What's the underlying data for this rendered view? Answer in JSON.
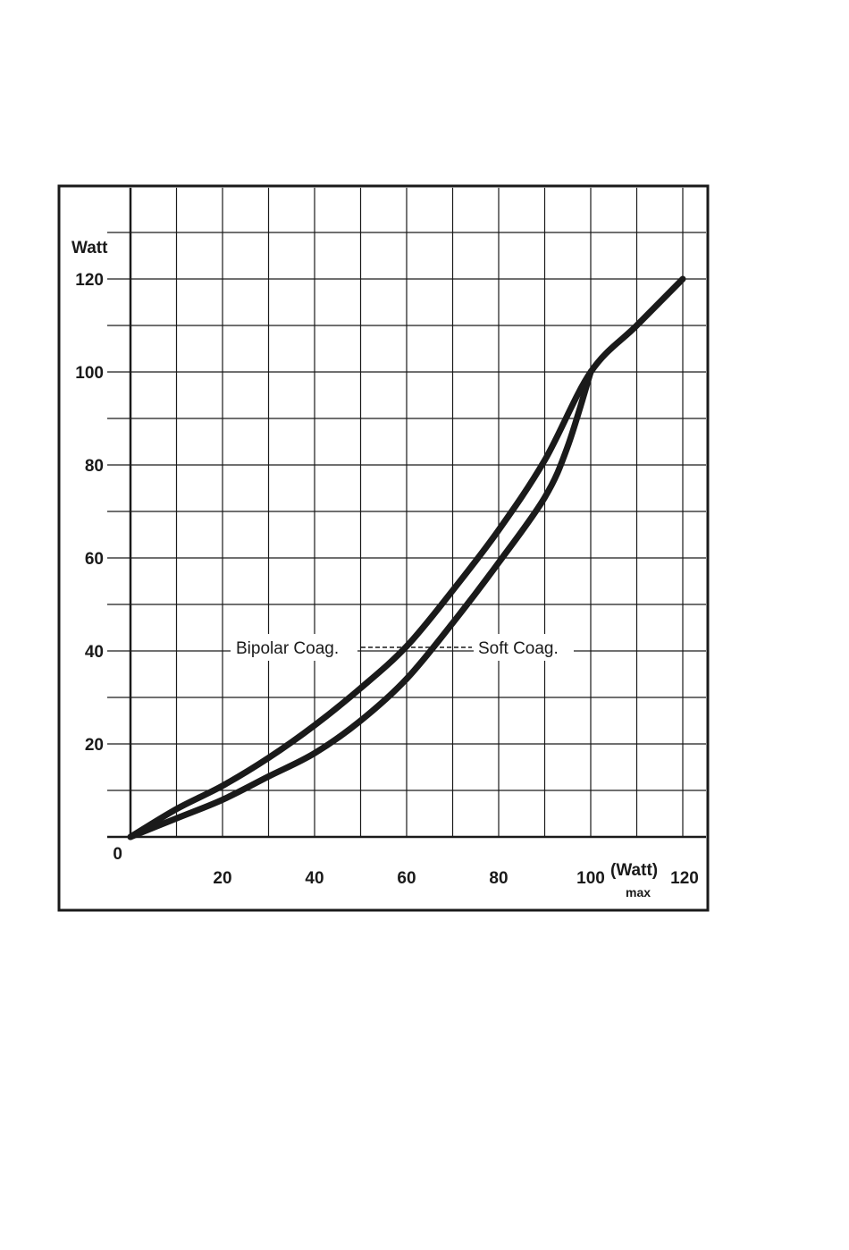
{
  "chart_data": {
    "type": "line",
    "ylabel": "Watt",
    "xlabel": "(Watt)",
    "xlabel_sub": "max",
    "x_ticks": [
      "20",
      "40",
      "60",
      "80",
      "100",
      "120"
    ],
    "y_ticks": [
      "0",
      "20",
      "40",
      "60",
      "80",
      "100",
      "120"
    ],
    "xlim": [
      0,
      120
    ],
    "ylim": [
      0,
      120
    ],
    "grid": true,
    "series": [
      {
        "name": "Bipolar Coag.",
        "x": [
          0,
          10,
          20,
          30,
          40,
          50,
          60,
          70,
          80,
          90,
          100,
          110,
          120
        ],
        "y": [
          0,
          6,
          11,
          17,
          24,
          32,
          41,
          53,
          66,
          81,
          100,
          110,
          120
        ]
      },
      {
        "name": "Soft Coag.",
        "x": [
          0,
          10,
          20,
          30,
          40,
          50,
          60,
          70,
          80,
          90,
          95,
          100
        ],
        "y": [
          0,
          4,
          8,
          13,
          18,
          25,
          34,
          46,
          59,
          73,
          84,
          100
        ]
      }
    ],
    "colors": {
      "line": "#1a1a1a",
      "grid": "#1a1a1a"
    }
  }
}
